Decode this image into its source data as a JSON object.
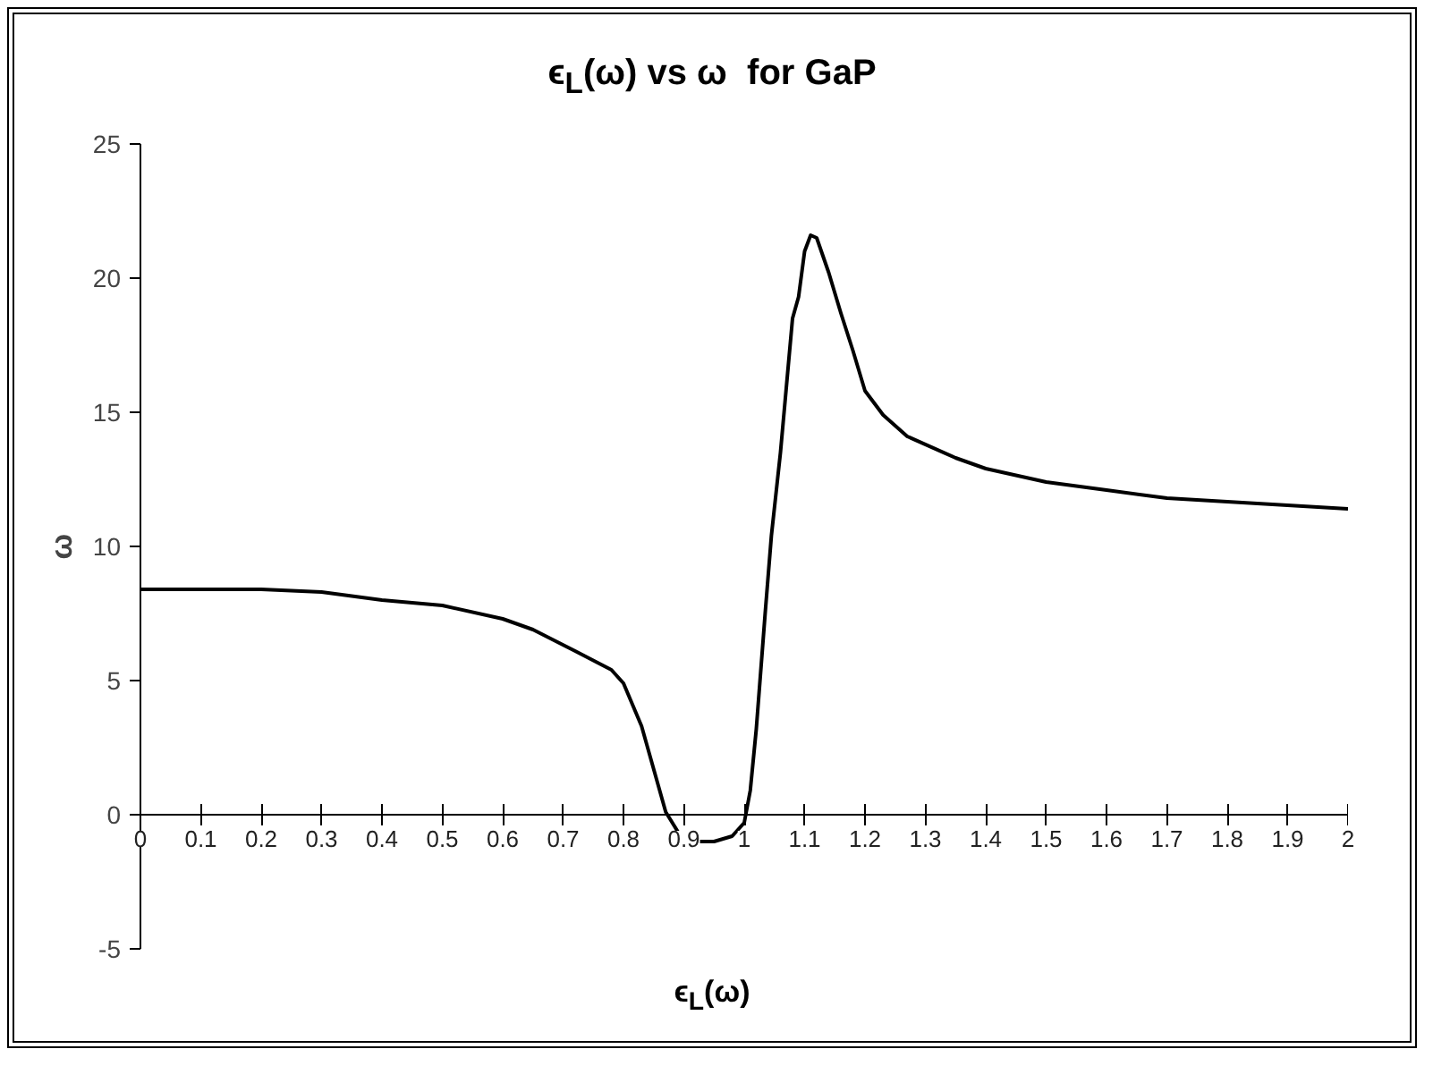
{
  "chart_data": {
    "type": "line",
    "title": "ϵ$_{L}$(ω) vs ω  for GaP",
    "xlabel": "ϵ$_{L}$(ω)",
    "ylabel": "ω",
    "x": [
      0,
      0.2,
      0.3,
      0.4,
      0.5,
      0.6,
      0.65,
      0.72,
      0.78,
      0.8,
      0.83,
      0.87,
      0.9,
      0.95,
      0.98,
      1.0,
      1.01,
      1.02,
      1.035,
      1.045,
      1.06,
      1.08,
      1.09,
      1.1,
      1.11,
      1.12,
      1.14,
      1.16,
      1.18,
      1.2,
      1.23,
      1.27,
      1.35,
      1.4,
      1.5,
      1.6,
      1.7,
      2.0
    ],
    "series": [
      {
        "color": "#000000",
        "values": [
          8.4,
          8.4,
          8.3,
          8.0,
          7.8,
          7.3,
          6.9,
          6.1,
          5.4,
          4.9,
          3.3,
          0.1,
          -1.0,
          -1.0,
          -0.8,
          -0.3,
          0.9,
          3.2,
          7.6,
          10.4,
          13.5,
          18.5,
          19.3,
          21.0,
          21.6,
          21.5,
          20.2,
          18.7,
          17.3,
          15.8,
          14.9,
          14.1,
          13.3,
          12.9,
          12.4,
          12.1,
          11.8,
          11.4
        ]
      }
    ],
    "xlim": [
      0,
      2
    ],
    "xticks": [
      0,
      0.1,
      0.2,
      0.3,
      0.4,
      0.5,
      0.6,
      0.7,
      0.8,
      0.9,
      1,
      1.1,
      1.2,
      1.3,
      1.4,
      1.5,
      1.6,
      1.7,
      1.8,
      1.9,
      2
    ],
    "ylim": [
      -5,
      25
    ],
    "yticks": [
      -5,
      0,
      5,
      10,
      15,
      20,
      25
    ],
    "grid": false
  }
}
